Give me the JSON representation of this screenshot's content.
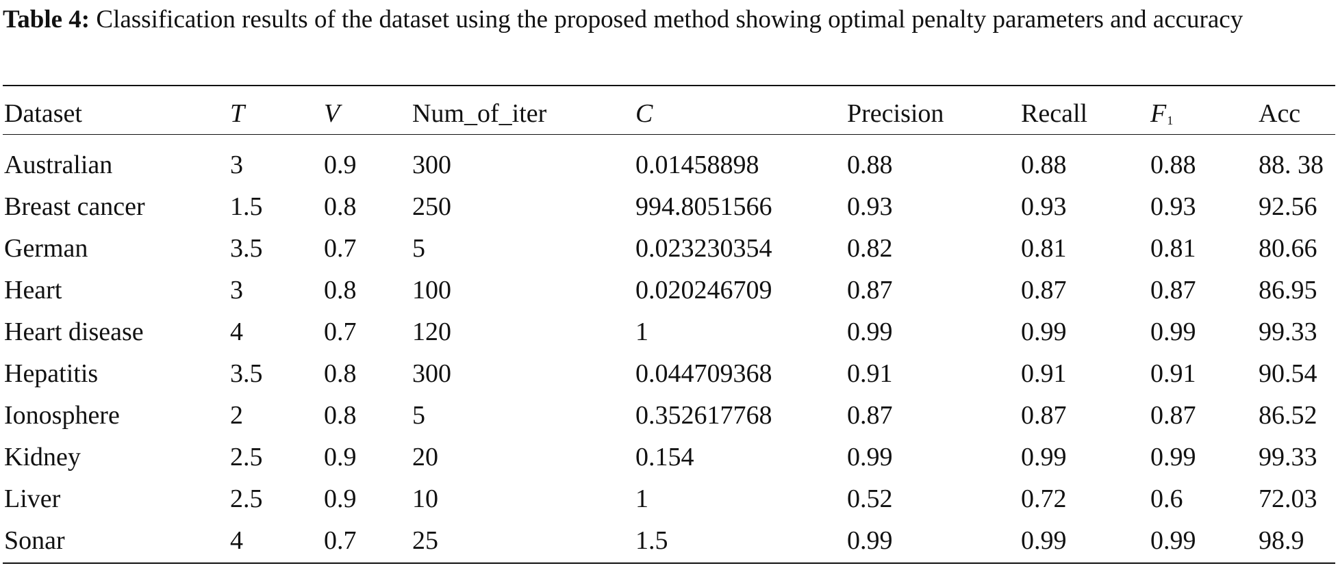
{
  "caption": {
    "label": "Table 4:",
    "text": "Classification results of the dataset using the proposed method showing optimal penalty parameters and accuracy"
  },
  "table": {
    "header": [
      "Dataset",
      "T",
      "V",
      "Num_of_iter",
      "C",
      "Precision",
      "Recall",
      {
        "main": "F",
        "sub": "1"
      },
      "Acc"
    ],
    "rows": [
      [
        "Australian",
        "3",
        "0.9",
        "300",
        "0.01458898",
        "0.88",
        "0.88",
        "0.88",
        "88. 38"
      ],
      [
        "Breast cancer",
        "1.5",
        "0.8",
        "250",
        "994.8051566",
        "0.93",
        "0.93",
        "0.93",
        "92.56"
      ],
      [
        "German",
        "3.5",
        "0.7",
        "5",
        "0.023230354",
        "0.82",
        "0.81",
        "0.81",
        "80.66"
      ],
      [
        "Heart",
        "3",
        "0.8",
        "100",
        "0.020246709",
        "0.87",
        "0.87",
        "0.87",
        "86.95"
      ],
      [
        "Heart disease",
        "4",
        "0.7",
        "120",
        "1",
        "0.99",
        "0.99",
        "0.99",
        "99.33"
      ],
      [
        "Hepatitis",
        "3.5",
        "0.8",
        "300",
        "0.044709368",
        "0.91",
        "0.91",
        "0.91",
        "90.54"
      ],
      [
        "Ionosphere",
        "2",
        "0.8",
        "5",
        "0.352617768",
        "0.87",
        "0.87",
        "0.87",
        "86.52"
      ],
      [
        "Kidney",
        "2.5",
        "0.9",
        "20",
        "0.154",
        "0.99",
        "0.99",
        "0.99",
        "99.33"
      ],
      [
        "Liver",
        "2.5",
        "0.9",
        "10",
        "1",
        "0.52",
        "0.72",
        "0.6",
        "72.03"
      ],
      [
        "Sonar",
        "4",
        "0.7",
        "25",
        "1.5",
        "0.99",
        "0.99",
        "0.99",
        "98.9"
      ]
    ]
  }
}
